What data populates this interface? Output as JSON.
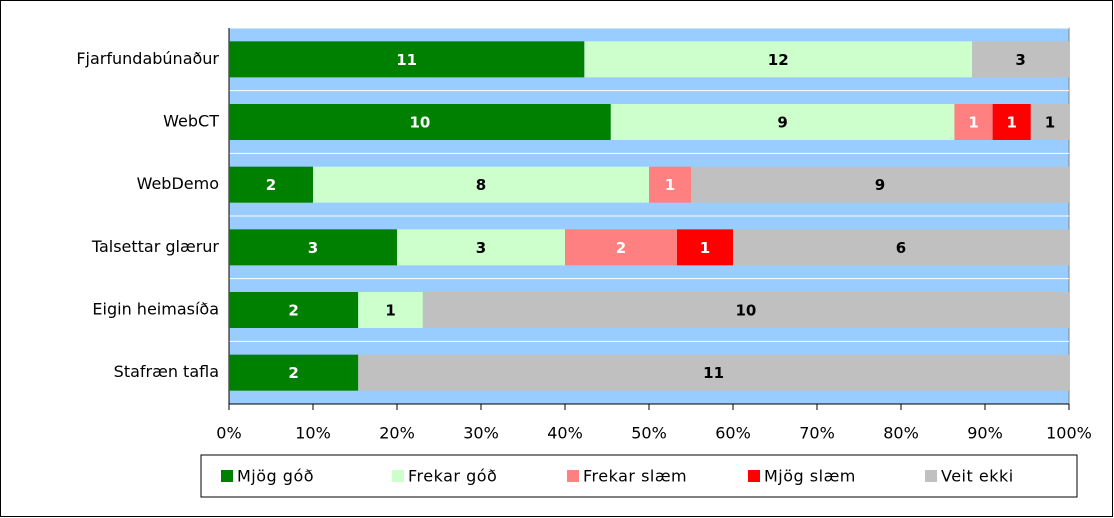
{
  "chart_data": {
    "type": "bar",
    "orientation": "horizontal",
    "stacking": "percent",
    "categories": [
      "Fjarfundabúnaður",
      "WebCT",
      "WebDemo",
      "Talsettar glærur",
      "Eigin heimasíða",
      "Stafræn tafla"
    ],
    "series": [
      {
        "name": "Mjög góð",
        "color": "#008000",
        "label_color": "#ffffff",
        "values": [
          11,
          10,
          2,
          3,
          2,
          2
        ]
      },
      {
        "name": "Frekar góð",
        "color": "#ccffcc",
        "label_color": "#000000",
        "values": [
          12,
          9,
          8,
          3,
          1,
          null
        ]
      },
      {
        "name": "Frekar slæm",
        "color": "#ff8080",
        "label_color": "#ffffff",
        "values": [
          null,
          1,
          1,
          2,
          null,
          null
        ]
      },
      {
        "name": "Mjög slæm",
        "color": "#ff0000",
        "label_color": "#ffffff",
        "values": [
          null,
          1,
          null,
          1,
          null,
          null
        ]
      },
      {
        "name": "Veit ekki",
        "color": "#c0c0c0",
        "label_color": "#000000",
        "values": [
          3,
          1,
          9,
          6,
          10,
          11
        ]
      }
    ],
    "xlim": [
      0,
      100
    ],
    "xticks": [
      {
        "value": 0,
        "label": "0%"
      },
      {
        "value": 10,
        "label": "10%"
      },
      {
        "value": 20,
        "label": "20%"
      },
      {
        "value": 30,
        "label": "30%"
      },
      {
        "value": 40,
        "label": "40%"
      },
      {
        "value": 50,
        "label": "50%"
      },
      {
        "value": 60,
        "label": "60%"
      },
      {
        "value": 70,
        "label": "70%"
      },
      {
        "value": 80,
        "label": "80%"
      },
      {
        "value": 90,
        "label": "90%"
      },
      {
        "value": 100,
        "label": "100%"
      }
    ],
    "plot_background": "#99ccff",
    "legend": "bottom"
  }
}
